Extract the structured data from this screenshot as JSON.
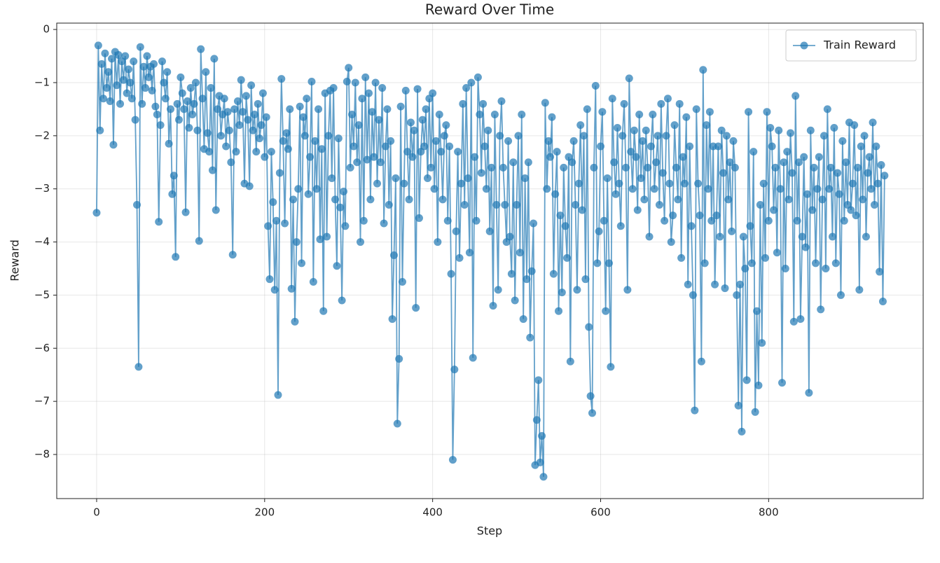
{
  "chart_data": {
    "type": "line",
    "title": "Reward Over Time",
    "x_label": "Step",
    "y_label": "Reward",
    "x": [
      0,
      2,
      4,
      6,
      8,
      10,
      12,
      14,
      16,
      18,
      20,
      22,
      24,
      26,
      28,
      30,
      32,
      34,
      36,
      38,
      40,
      42,
      44,
      46,
      48,
      50,
      52,
      54,
      56,
      58,
      60,
      62,
      64,
      66,
      68,
      70,
      72,
      74,
      76,
      78,
      80,
      82,
      84,
      86,
      88,
      90,
      92,
      94,
      96,
      98,
      100,
      102,
      104,
      106,
      108,
      110,
      112,
      114,
      116,
      118,
      120,
      122,
      124,
      126,
      128,
      130,
      132,
      134,
      136,
      138,
      140,
      142,
      144,
      146,
      148,
      150,
      152,
      154,
      156,
      158,
      160,
      162,
      164,
      166,
      168,
      170,
      172,
      174,
      176,
      178,
      180,
      182,
      184,
      186,
      188,
      190,
      192,
      194,
      196,
      198,
      200,
      202,
      204,
      206,
      208,
      210,
      212,
      214,
      216,
      218,
      220,
      222,
      224,
      226,
      228,
      230,
      232,
      234,
      236,
      238,
      240,
      242,
      244,
      246,
      248,
      250,
      252,
      254,
      256,
      258,
      260,
      262,
      264,
      266,
      268,
      270,
      272,
      274,
      276,
      278,
      280,
      282,
      284,
      286,
      288,
      290,
      292,
      294,
      296,
      298,
      300,
      302,
      304,
      306,
      308,
      310,
      312,
      314,
      316,
      318,
      320,
      322,
      324,
      326,
      328,
      330,
      332,
      334,
      336,
      338,
      340,
      342,
      344,
      346,
      348,
      350,
      352,
      354,
      356,
      358,
      360,
      362,
      364,
      366,
      368,
      370,
      372,
      374,
      376,
      378,
      380,
      382,
      384,
      386,
      388,
      390,
      392,
      394,
      396,
      398,
      400,
      402,
      404,
      406,
      408,
      410,
      412,
      414,
      416,
      418,
      420,
      422,
      424,
      426,
      428,
      430,
      432,
      434,
      436,
      438,
      440,
      442,
      444,
      446,
      448,
      450,
      452,
      454,
      456,
      458,
      460,
      462,
      464,
      466,
      468,
      470,
      472,
      474,
      476,
      478,
      480,
      482,
      484,
      486,
      488,
      490,
      492,
      494,
      496,
      498,
      500,
      502,
      504,
      506,
      508,
      510,
      512,
      514,
      516,
      518,
      520,
      522,
      524,
      526,
      528,
      530,
      532,
      534,
      536,
      538,
      540,
      542,
      544,
      546,
      548,
      550,
      552,
      554,
      556,
      558,
      560,
      562,
      564,
      566,
      568,
      570,
      572,
      574,
      576,
      578,
      580,
      582,
      584,
      586,
      588,
      590,
      592,
      594,
      596,
      598,
      600,
      602,
      604,
      606,
      608,
      610,
      612,
      614,
      616,
      618,
      620,
      622,
      624,
      626,
      628,
      630,
      632,
      634,
      636,
      638,
      640,
      642,
      644,
      646,
      648,
      650,
      652,
      654,
      656,
      658,
      660,
      662,
      664,
      666,
      668,
      670,
      672,
      674,
      676,
      678,
      680,
      682,
      684,
      686,
      688,
      690,
      692,
      694,
      696,
      698,
      700,
      702,
      704,
      706,
      708,
      710,
      712,
      714,
      716,
      718,
      720,
      722,
      724,
      726,
      728,
      730,
      732,
      734,
      736,
      738,
      740,
      742,
      744,
      746,
      748,
      750,
      752,
      754,
      756,
      758,
      760,
      762,
      764,
      766,
      768,
      770,
      772,
      774,
      776,
      778,
      780,
      782,
      784,
      786,
      788,
      790,
      792,
      794,
      796,
      798,
      800,
      802,
      804,
      806,
      808,
      810,
      812,
      814,
      816,
      818,
      820,
      822,
      824,
      826,
      828,
      830,
      832,
      834,
      836,
      838,
      840,
      842,
      844,
      846,
      848,
      850,
      852,
      854,
      856,
      858,
      860,
      862,
      864,
      866,
      868,
      870,
      872,
      874,
      876,
      878,
      880,
      882,
      884,
      886,
      888,
      890,
      892,
      894,
      896,
      898,
      900,
      902,
      904,
      906,
      908,
      910,
      912,
      914,
      916,
      918,
      920,
      922,
      924,
      926,
      928,
      930,
      932,
      934,
      936,
      938
    ],
    "series": [
      {
        "name": "Train Reward",
        "color": "#1f77b4",
        "values": [
          -3.45,
          -0.3,
          -1.9,
          -0.65,
          -1.3,
          -0.45,
          -1.1,
          -0.8,
          -1.35,
          -0.55,
          -2.17,
          -0.42,
          -1.05,
          -0.48,
          -1.4,
          -0.6,
          -0.95,
          -0.5,
          -1.2,
          -0.75,
          -1.0,
          -1.3,
          -0.6,
          -1.7,
          -3.3,
          -6.35,
          -0.33,
          -1.4,
          -0.7,
          -1.1,
          -0.5,
          -0.9,
          -0.7,
          -1.15,
          -0.65,
          -1.45,
          -1.6,
          -3.62,
          -1.8,
          -0.6,
          -1.0,
          -1.3,
          -0.8,
          -2.15,
          -1.5,
          -3.1,
          -2.75,
          -4.28,
          -1.4,
          -1.7,
          -0.9,
          -1.2,
          -1.5,
          -3.44,
          -1.35,
          -1.85,
          -1.1,
          -1.6,
          -1.4,
          -1.0,
          -1.9,
          -3.98,
          -0.37,
          -1.3,
          -2.25,
          -0.8,
          -1.95,
          -2.3,
          -1.1,
          -2.65,
          -0.55,
          -3.4,
          -1.5,
          -1.25,
          -2.0,
          -1.6,
          -1.3,
          -2.2,
          -1.55,
          -1.9,
          -2.5,
          -4.24,
          -1.5,
          -2.3,
          -1.35,
          -1.8,
          -0.95,
          -1.55,
          -2.9,
          -1.25,
          -1.7,
          -2.95,
          -1.05,
          -1.9,
          -1.6,
          -2.3,
          -1.4,
          -2.05,
          -1.8,
          -1.2,
          -2.4,
          -1.65,
          -3.7,
          -4.7,
          -2.3,
          -3.25,
          -4.9,
          -3.6,
          -6.88,
          -2.7,
          -0.93,
          -2.1,
          -3.65,
          -1.95,
          -2.25,
          -1.5,
          -4.88,
          -3.2,
          -5.5,
          -4.0,
          -3.0,
          -1.45,
          -4.4,
          -1.65,
          -2.0,
          -1.3,
          -3.1,
          -2.4,
          -0.98,
          -4.75,
          -2.1,
          -3.0,
          -1.5,
          -3.95,
          -2.25,
          -5.3,
          -1.2,
          -3.9,
          -2.0,
          -1.15,
          -2.8,
          -1.1,
          -3.2,
          -4.45,
          -2.05,
          -3.35,
          -5.1,
          -3.05,
          -3.7,
          -0.98,
          -0.72,
          -2.6,
          -1.6,
          -2.2,
          -1.0,
          -2.5,
          -1.8,
          -4.0,
          -1.3,
          -3.6,
          -0.9,
          -2.45,
          -1.2,
          -3.2,
          -1.55,
          -2.4,
          -1.0,
          -2.9,
          -1.7,
          -2.5,
          -1.1,
          -3.65,
          -2.2,
          -1.5,
          -3.3,
          -2.1,
          -5.45,
          -4.25,
          -2.8,
          -7.42,
          -6.2,
          -1.45,
          -4.75,
          -2.9,
          -1.15,
          -2.3,
          -3.2,
          -1.75,
          -2.4,
          -1.9,
          -5.24,
          -1.12,
          -3.55,
          -2.3,
          -1.7,
          -2.2,
          -1.5,
          -2.8,
          -1.3,
          -2.6,
          -1.2,
          -3.0,
          -2.1,
          -4.0,
          -1.6,
          -2.3,
          -3.2,
          -2.0,
          -1.8,
          -3.6,
          -2.2,
          -4.6,
          -8.1,
          -6.4,
          -3.8,
          -2.3,
          -4.3,
          -2.9,
          -1.4,
          -3.3,
          -1.1,
          -2.8,
          -4.2,
          -1.0,
          -6.18,
          -2.4,
          -3.6,
          -0.9,
          -1.6,
          -2.7,
          -1.4,
          -2.2,
          -3.0,
          -1.9,
          -3.8,
          -2.6,
          -5.2,
          -1.6,
          -3.3,
          -4.9,
          -2.0,
          -1.35,
          -2.6,
          -3.3,
          -4.0,
          -2.1,
          -3.9,
          -4.6,
          -2.5,
          -5.1,
          -3.3,
          -2.0,
          -4.2,
          -1.6,
          -5.45,
          -2.8,
          -4.7,
          -2.5,
          -5.8,
          -4.55,
          -3.65,
          -8.2,
          -7.35,
          -6.6,
          -8.15,
          -7.65,
          -8.42,
          -1.38,
          -3.0,
          -2.1,
          -2.4,
          -1.65,
          -4.6,
          -3.1,
          -2.3,
          -5.3,
          -3.5,
          -4.95,
          -2.6,
          -3.7,
          -4.3,
          -2.4,
          -6.25,
          -2.5,
          -2.1,
          -3.3,
          -4.9,
          -2.9,
          -1.8,
          -3.4,
          -2.0,
          -4.7,
          -1.5,
          -5.6,
          -6.9,
          -7.22,
          -2.6,
          -1.06,
          -4.4,
          -3.8,
          -2.2,
          -1.55,
          -3.6,
          -5.3,
          -2.8,
          -4.4,
          -6.35,
          -1.3,
          -2.5,
          -3.1,
          -1.85,
          -2.9,
          -3.7,
          -2.0,
          -1.4,
          -2.6,
          -4.9,
          -0.92,
          -2.3,
          -3.0,
          -1.9,
          -2.4,
          -3.4,
          -1.6,
          -2.8,
          -2.1,
          -3.2,
          -1.9,
          -2.6,
          -3.9,
          -2.2,
          -1.6,
          -3.0,
          -2.5,
          -2.0,
          -3.3,
          -1.4,
          -2.7,
          -3.6,
          -2.0,
          -1.3,
          -2.9,
          -4.0,
          -3.5,
          -1.8,
          -2.6,
          -3.2,
          -1.4,
          -4.3,
          -2.4,
          -2.9,
          -1.65,
          -4.8,
          -2.2,
          -3.7,
          -5.0,
          -7.17,
          -1.5,
          -2.9,
          -3.5,
          -6.25,
          -0.76,
          -4.4,
          -1.8,
          -3.0,
          -1.55,
          -3.6,
          -2.2,
          -4.8,
          -3.5,
          -2.2,
          -3.9,
          -1.9,
          -2.7,
          -4.87,
          -2.0,
          -3.2,
          -2.5,
          -3.8,
          -2.1,
          -2.6,
          -5.0,
          -7.08,
          -4.8,
          -7.57,
          -3.9,
          -4.5,
          -6.6,
          -1.55,
          -3.7,
          -4.4,
          -2.3,
          -7.2,
          -5.3,
          -6.7,
          -3.3,
          -5.9,
          -2.9,
          -4.3,
          -1.55,
          -3.6,
          -1.85,
          -2.2,
          -3.4,
          -2.6,
          -4.2,
          -1.9,
          -3.0,
          -6.65,
          -2.5,
          -4.5,
          -2.3,
          -3.2,
          -1.95,
          -2.7,
          -5.5,
          -1.25,
          -3.6,
          -2.5,
          -5.45,
          -3.9,
          -2.4,
          -4.1,
          -3.1,
          -6.84,
          -1.9,
          -3.4,
          -2.6,
          -4.4,
          -3.0,
          -2.4,
          -5.27,
          -3.2,
          -2.0,
          -4.5,
          -1.5,
          -3.0,
          -2.6,
          -3.9,
          -1.85,
          -4.4,
          -2.7,
          -3.1,
          -5.0,
          -2.1,
          -3.6,
          -2.5,
          -3.3,
          -1.75,
          -3.4,
          -2.9,
          -1.8,
          -3.5,
          -2.6,
          -4.9,
          -2.2,
          -3.2,
          -2.0,
          -3.9,
          -2.7,
          -2.4,
          -3.0,
          -1.75,
          -3.3,
          -2.2,
          -2.9,
          -4.56,
          -2.55,
          -5.12,
          -2.75
        ]
      }
    ],
    "xlim": [
      -47.5,
      984
    ],
    "ylim": [
      -8.83,
      0.12
    ],
    "xticks": [
      0,
      200,
      400,
      600,
      800
    ],
    "yticks": [
      0,
      {
        "value": -1,
        "label": "−1"
      },
      {
        "value": -2,
        "label": "−2"
      },
      {
        "value": -3,
        "label": "−3"
      },
      {
        "value": -4,
        "label": "−4"
      },
      {
        "value": -5,
        "label": "−5"
      },
      {
        "value": -6,
        "label": "−6"
      },
      {
        "value": -7,
        "label": "−7"
      },
      {
        "value": -8,
        "label": "−8"
      }
    ],
    "grid": true,
    "legend": "upper right"
  }
}
